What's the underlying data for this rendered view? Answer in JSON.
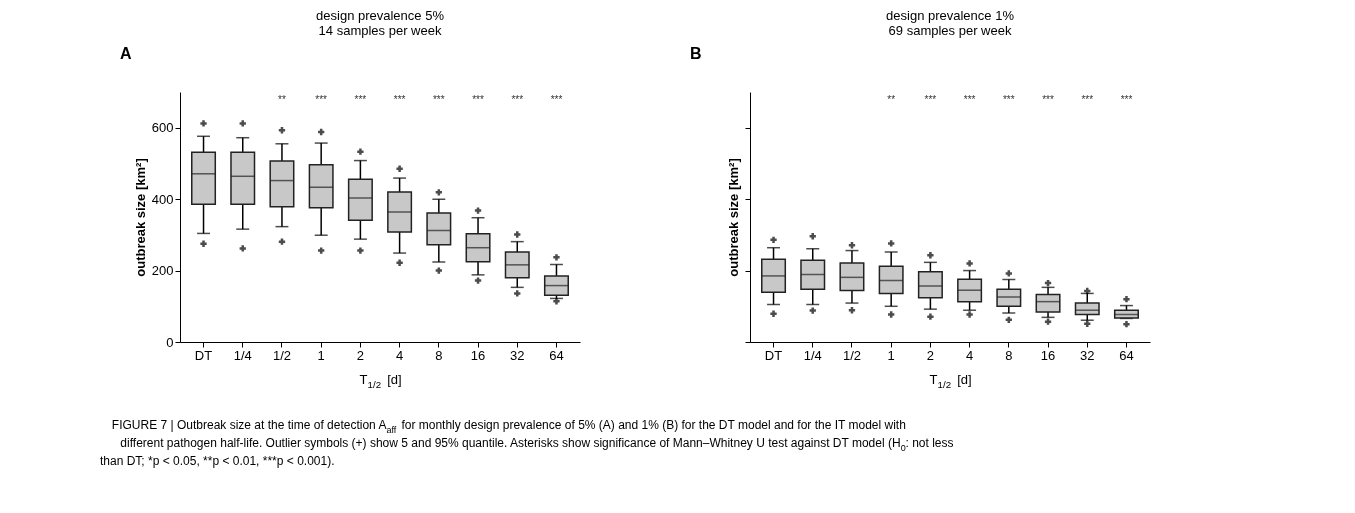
{
  "chart_data": [
    {
      "type": "box",
      "title": "design prevalence 5%",
      "subtitle": "14 samples per week",
      "xlabel": "T$_{1/2}$ [d]",
      "ylabel": "outbreak size [km²]",
      "categories": [
        "DT",
        "1/4",
        "1/2",
        "1",
        "2",
        "4",
        "8",
        "16",
        "32",
        "64"
      ],
      "boxes": [
        {
          "low": 304,
          "q1": 386,
          "median": 471,
          "q3": 531,
          "high": 576,
          "outliers": [
            612,
            275
          ]
        },
        {
          "low": 316,
          "q1": 386,
          "median": 464,
          "q3": 531,
          "high": 572,
          "outliers": [
            612,
            262
          ]
        },
        {
          "low": 323,
          "q1": 379,
          "median": 452,
          "q3": 507,
          "high": 555,
          "outliers": [
            593,
            281
          ]
        },
        {
          "low": 299,
          "q1": 376,
          "median": 433,
          "q3": 496,
          "high": 557,
          "outliers": [
            588,
            256
          ]
        },
        {
          "low": 288,
          "q1": 341,
          "median": 403,
          "q3": 456,
          "high": 508,
          "outliers": [
            533,
            256
          ]
        },
        {
          "low": 249,
          "q1": 308,
          "median": 364,
          "q3": 420,
          "high": 459,
          "outliers": [
            485,
            222
          ]
        },
        {
          "low": 224,
          "q1": 272,
          "median": 312,
          "q3": 361,
          "high": 400,
          "outliers": [
            419,
            200
          ]
        },
        {
          "low": 188,
          "q1": 225,
          "median": 264,
          "q3": 303,
          "high": 348,
          "outliers": [
            368,
            172
          ]
        },
        {
          "low": 153,
          "q1": 180,
          "median": 216,
          "q3": 252,
          "high": 281,
          "outliers": [
            301,
            136
          ]
        },
        {
          "low": 122,
          "q1": 131,
          "median": 158,
          "q3": 185,
          "high": 217,
          "outliers": [
            237,
            114
          ]
        }
      ],
      "ylim": [
        0,
        700
      ],
      "yticks": [
        0,
        200,
        400,
        600
      ],
      "grid": false,
      "annotations": [
        "A",
        "**",
        "***",
        "***",
        "***",
        "***",
        "***",
        "***",
        "***",
        "FIGURE 7 | Outbreak size at the time of detection A$_{aff}$ for monthly design prevalence of 5% (A) and 1% (B) for the DT model and for the IT model with",
        "different pathogen half-life. Outlier symbols (+) show 5 and 95% quantile. Asterisks show significance of Mann–Whitney U test against DT model (H$_{0}$: not less",
        "than DT; *p < 0.05, **p < 0.01, ***p < 0.001)."
      ]
    },
    {
      "type": "box",
      "title": "design prevalence 1%",
      "subtitle": "69 samples per week",
      "xlabel": "T$_{1/2}$ [d]",
      "ylabel": "outbreak size [km²]",
      "categories": [
        "DT",
        "1/4",
        "1/2",
        "1",
        "2",
        "4",
        "8",
        "16",
        "32",
        "64"
      ],
      "boxes": [
        {
          "low": 105,
          "q1": 139,
          "median": 185,
          "q3": 232,
          "high": 264,
          "outliers": [
            286,
            79
          ]
        },
        {
          "low": 105,
          "q1": 148,
          "median": 189,
          "q3": 229,
          "high": 261,
          "outliers": [
            296,
            88
          ]
        },
        {
          "low": 109,
          "q1": 144,
          "median": 181,
          "q3": 221,
          "high": 256,
          "outliers": [
            271,
            89
          ]
        },
        {
          "low": 100,
          "q1": 136,
          "median": 172,
          "q3": 212,
          "high": 252,
          "outliers": [
            276,
            77
          ]
        },
        {
          "low": 92,
          "q1": 124,
          "median": 157,
          "q3": 197,
          "high": 223,
          "outliers": [
            243,
            71
          ]
        },
        {
          "low": 89,
          "q1": 113,
          "median": 145,
          "q3": 176,
          "high": 200,
          "outliers": [
            220,
            77
          ]
        },
        {
          "low": 81,
          "q1": 100,
          "median": 126,
          "q3": 148,
          "high": 175,
          "outliers": [
            192,
            62
          ]
        },
        {
          "low": 69,
          "q1": 84,
          "median": 113,
          "q3": 133,
          "high": 153,
          "outliers": [
            165,
            57
          ]
        },
        {
          "low": 61,
          "q1": 77,
          "median": 89,
          "q3": 109,
          "high": 136,
          "outliers": [
            143,
            51
          ]
        },
        {
          "low": 66,
          "q1": 67,
          "median": 77,
          "q3": 89,
          "high": 102,
          "outliers": [
            120,
            50
          ]
        }
      ],
      "ylim": [
        0,
        700
      ],
      "yticks": [
        0,
        200,
        400,
        600
      ],
      "tick_labels": "x",
      "grid": false,
      "annotations": [
        "B",
        "**",
        "***",
        "***",
        "***",
        "***",
        "***",
        "***"
      ]
    }
  ]
}
